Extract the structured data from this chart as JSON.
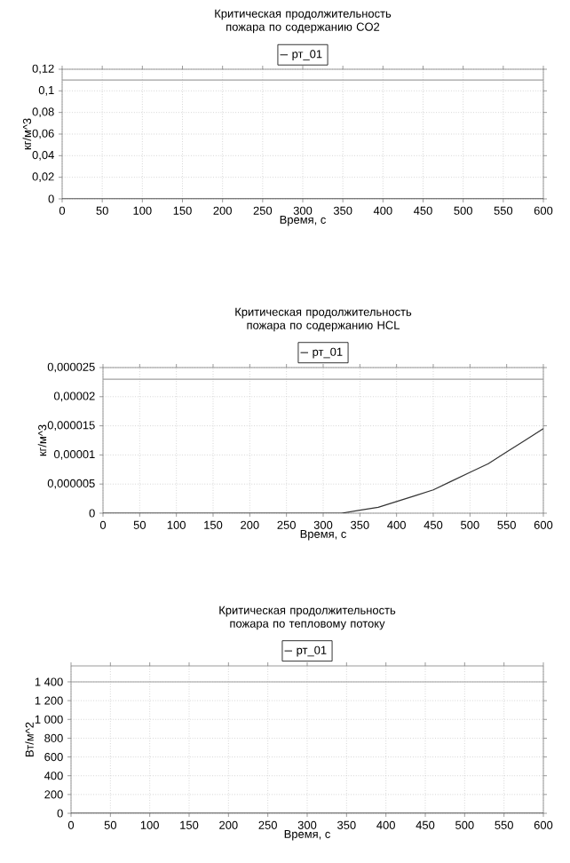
{
  "chart_data": [
    {
      "type": "line",
      "title": "Критическая продолжительность пожара по содержанию CO2",
      "xlabel": "Время, с",
      "ylabel": "кг/м^3",
      "x": [
        0,
        50,
        100,
        150,
        200,
        250,
        300,
        350,
        400,
        450,
        500,
        550,
        600
      ],
      "series": [
        {
          "name": "рт_01",
          "color": "#333333",
          "values": [
            0,
            0,
            0,
            0,
            0,
            0,
            0,
            0,
            0,
            0,
            0,
            0,
            0
          ]
        }
      ],
      "xlim": [
        0,
        600
      ],
      "ylim": [
        0,
        0.12
      ],
      "xticks": [
        0,
        50,
        100,
        150,
        200,
        250,
        300,
        350,
        400,
        450,
        500,
        550,
        600
      ],
      "yticks": [
        0,
        {
          "value": 0.02,
          "label": "0,02"
        },
        {
          "value": 0.04,
          "label": "0,04"
        },
        {
          "value": 0.06,
          "label": "0,06"
        },
        {
          "value": 0.08,
          "label": "0,08"
        },
        {
          "value": 0.1,
          "label": "0,1"
        },
        {
          "value": 0.12,
          "label": "0,12"
        }
      ],
      "ref_lines": [
        {
          "axis": "y",
          "value": 0.11,
          "color": "#a0a0a0"
        }
      ],
      "grid": true,
      "legend": "top"
    },
    {
      "type": "line",
      "title": "Критическая продолжительность пожара по содержанию HCL",
      "xlabel": "Время, с",
      "ylabel": "кг/м^3",
      "x": [
        0,
        50,
        100,
        150,
        200,
        250,
        300,
        325,
        350,
        375,
        400,
        425,
        450,
        475,
        500,
        525,
        550,
        575,
        600
      ],
      "series": [
        {
          "name": "рт_01",
          "color": "#333333",
          "values": [
            0,
            0,
            0,
            0,
            0,
            0,
            0,
            0,
            5e-07,
            1e-06,
            2e-06,
            3e-06,
            4e-06,
            5.5e-06,
            7e-06,
            8.5e-06,
            1.05e-05,
            1.25e-05,
            1.45e-05
          ]
        }
      ],
      "xlim": [
        0,
        600
      ],
      "ylim": [
        0,
        2.5e-05
      ],
      "xticks": [
        0,
        50,
        100,
        150,
        200,
        250,
        300,
        350,
        400,
        450,
        500,
        550,
        600
      ],
      "yticks": [
        0,
        {
          "value": 5e-06,
          "label": "0,000005"
        },
        {
          "value": 1e-05,
          "label": "0,00001"
        },
        {
          "value": 1.5e-05,
          "label": "0,000015"
        },
        {
          "value": 2e-05,
          "label": "0,00002"
        },
        {
          "value": 2.5e-05,
          "label": "0,000025"
        }
      ],
      "ref_lines": [
        {
          "axis": "y",
          "value": 2.3e-05,
          "color": "#a0a0a0"
        }
      ],
      "grid": true,
      "legend": "top"
    },
    {
      "type": "line",
      "title": "Критическая продолжительность пожара по тепловому потоку",
      "xlabel": "Время, с",
      "ylabel": "Вт/м^2",
      "x": [
        0,
        50,
        100,
        150,
        200,
        250,
        300,
        350,
        400,
        450,
        500,
        550,
        600
      ],
      "series": [
        {
          "name": "рт_01",
          "color": "#333333",
          "values": [
            0,
            0,
            0,
            0,
            0,
            0,
            0,
            0,
            0,
            0,
            0,
            0,
            0
          ]
        }
      ],
      "xlim": [
        0,
        600
      ],
      "ylim": [
        0,
        1570
      ],
      "xticks": [
        0,
        50,
        100,
        150,
        200,
        250,
        300,
        350,
        400,
        450,
        500,
        550,
        600
      ],
      "yticks": [
        0,
        200,
        400,
        600,
        800,
        {
          "value": 1000,
          "label": "1 000"
        },
        {
          "value": 1200,
          "label": "1 200"
        },
        {
          "value": 1400,
          "label": "1 400"
        }
      ],
      "ref_lines": [
        {
          "axis": "y",
          "value": 1400,
          "color": "#a0a0a0"
        }
      ],
      "grid": true,
      "legend": "top"
    }
  ]
}
